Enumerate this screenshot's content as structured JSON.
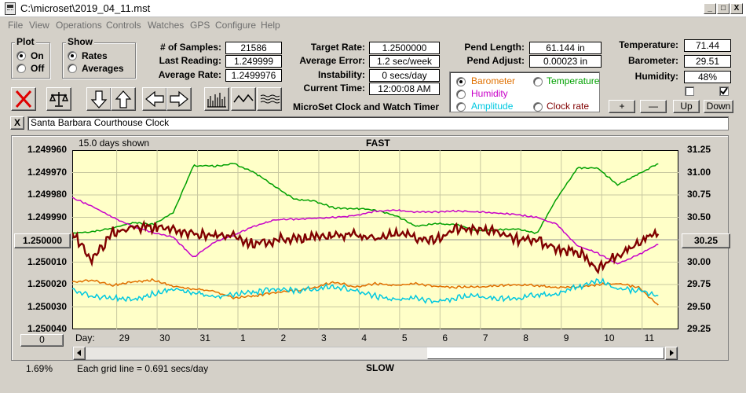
{
  "window": {
    "title": "C:\\microset\\2019_04_11.mst",
    "controls": [
      "_",
      "□",
      "X"
    ]
  },
  "menu": [
    "File",
    "View",
    "Operations",
    "Controls",
    "Watches",
    "GPS",
    "Configure",
    "Help"
  ],
  "plot_group": {
    "title": "Plot",
    "options": [
      "On",
      "Off"
    ],
    "selected": "On"
  },
  "show_group": {
    "title": "Show",
    "options": [
      "Rates",
      "Averages"
    ],
    "selected": "Rates"
  },
  "stats": {
    "samples_label": "# of Samples:",
    "samples": "21586",
    "last_reading_label": "Last Reading:",
    "last_reading": "1.249999",
    "avg_rate_label": "Average Rate:",
    "avg_rate": "1.2499976",
    "target_rate_label": "Target Rate:",
    "target_rate": "1.2500000",
    "avg_error_label": "Average Error:",
    "avg_error": "1.2 sec/week",
    "instability_label": "Instability:",
    "instability": "0 secs/day",
    "current_time_label": "Current Time:",
    "current_time": "12:00:08 AM",
    "pend_length_label": "Pend Length:",
    "pend_length": "61.144 in",
    "pend_adjust_label": "Pend Adjust:",
    "pend_adjust": "0.00023 in",
    "temperature_label": "Temperature:",
    "temperature": "71.44",
    "barometer_label": "Barometer:",
    "barometer": "29.51",
    "humidity_label": "Humidity:",
    "humidity": "48%"
  },
  "app_heading": "MicroSet Clock and Watch Timer",
  "series_selector": {
    "options": [
      {
        "label": "Barometer",
        "color": "#e07000",
        "selected": true
      },
      {
        "label": "Temperature",
        "color": "#00a000",
        "selected": false
      },
      {
        "label": "Humidity",
        "color": "#c800c8",
        "selected": false
      },
      {
        "label": "Amplitude",
        "color": "#00c8e0",
        "selected": false
      },
      {
        "label": "Clock rate",
        "color": "#800000",
        "selected": false
      }
    ]
  },
  "small_buttons": {
    "plus": "+",
    "minus": "—",
    "up": "Up",
    "down": "Down"
  },
  "checkboxes": [
    {
      "checked": false
    },
    {
      "checked": true
    }
  ],
  "clock_name": {
    "close": "X",
    "value": "Santa Barbara Courthouse Clock"
  },
  "toolbar_icons": [
    "cancel-icon",
    "scale-icon",
    "arrow-down-icon",
    "arrow-up-icon",
    "arrow-left-icon",
    "arrow-right-icon",
    "histogram-icon",
    "wave-icon",
    "squiggle-icon"
  ],
  "chart": {
    "days_shown": "15.0 days shown",
    "fast_label": "FAST",
    "slow_label": "SLOW",
    "grid_note": "Each grid line = 0.691 secs/day",
    "percent": "1.69%",
    "day_label": "Day:",
    "left_button": "1.250000",
    "right_button": "30.25",
    "zero_button": "0",
    "plot_bg": "#ffffc8",
    "left_ticks": [
      "1.249960",
      "1.249970",
      "1.249980",
      "1.249990",
      "1.250000",
      "1.250010",
      "1.250020",
      "1.250030",
      "1.250040"
    ],
    "right_ticks": [
      "31.25",
      "31.00",
      "30.75",
      "30.50",
      "30.25",
      "30.00",
      "29.75",
      "29.50",
      "29.25"
    ],
    "x_ticks": [
      "29",
      "30",
      "31",
      "1",
      "2",
      "3",
      "4",
      "5",
      "6",
      "7",
      "8",
      "9",
      "10",
      "11"
    ]
  },
  "chart_data": {
    "type": "line",
    "x_unit": "day index (0 = start of 15.0-day window)",
    "xlim": [
      0,
      15
    ],
    "ylim_left": [
      1.24996,
      1.25004
    ],
    "ylim_right": [
      29.25,
      31.25
    ],
    "series": [
      {
        "name": "Clock rate",
        "axis": "left",
        "color": "#800000",
        "x": [
          0,
          0.5,
          1,
          1.5,
          2,
          2.5,
          3,
          3.5,
          4,
          4.5,
          5,
          5.5,
          6,
          6.5,
          7,
          7.5,
          8,
          8.5,
          9,
          9.5,
          10,
          10.5,
          11,
          11.5,
          12,
          12.5,
          13,
          13.5,
          14,
          14.5
        ],
        "values": [
          1.249997,
          1.250009,
          1.249997,
          1.249995,
          1.249994,
          1.249996,
          1.249997,
          1.249998,
          1.249999,
          1.250002,
          1.25,
          1.249999,
          1.249999,
          1.249998,
          1.249998,
          1.25,
          1.249997,
          1.249999,
          1.25,
          1.249995,
          1.249995,
          1.249996,
          1.25,
          1.25,
          1.250004,
          1.250005,
          1.250013,
          1.250007,
          1.250002,
          1.249996
        ]
      },
      {
        "name": "Temperature",
        "axis": "right",
        "color": "#00a000",
        "x": [
          0,
          0.5,
          1,
          1.5,
          2,
          2.5,
          3,
          3.5,
          4,
          4.5,
          5,
          5.5,
          6,
          6.5,
          7,
          7.5,
          8,
          8.5,
          9,
          9.5,
          10,
          10.5,
          11,
          11.5,
          12,
          12.5,
          13,
          13.5,
          14,
          14.5
        ],
        "values": [
          30.32,
          30.34,
          30.38,
          30.44,
          30.42,
          30.55,
          31.08,
          31.07,
          31.1,
          31.0,
          30.85,
          30.7,
          30.68,
          30.6,
          30.6,
          30.58,
          30.52,
          30.4,
          30.43,
          30.42,
          30.35,
          30.36,
          30.37,
          30.32,
          30.72,
          31.05,
          31.05,
          30.86,
          30.98,
          31.1
        ]
      },
      {
        "name": "Humidity",
        "axis": "right",
        "color": "#c800c8",
        "x": [
          0,
          0.5,
          1,
          1.5,
          2,
          2.5,
          3,
          3.5,
          4,
          4.5,
          5,
          5.5,
          6,
          6.5,
          7,
          7.5,
          8,
          8.5,
          9,
          9.5,
          10,
          10.5,
          11,
          11.5,
          12,
          12.5,
          13,
          13.5,
          14,
          14.5
        ],
        "values": [
          30.72,
          30.62,
          30.5,
          30.4,
          30.33,
          30.28,
          30.05,
          30.22,
          30.3,
          30.4,
          30.47,
          30.48,
          30.49,
          30.5,
          30.52,
          30.57,
          30.58,
          30.56,
          30.56,
          30.57,
          30.56,
          30.55,
          30.53,
          30.5,
          30.42,
          30.18,
          30.1,
          29.98,
          30.08,
          30.2
        ]
      },
      {
        "name": "Barometer",
        "axis": "right",
        "color": "#e07000",
        "x": [
          0,
          0.5,
          1,
          1.5,
          2,
          2.5,
          3,
          3.5,
          4,
          4.5,
          5,
          5.5,
          6,
          6.5,
          7,
          7.5,
          8,
          8.5,
          9,
          9.5,
          10,
          10.5,
          11,
          11.5,
          12,
          12.5,
          13,
          13.5,
          14,
          14.5
        ],
        "values": [
          29.78,
          29.8,
          29.74,
          29.78,
          29.8,
          29.73,
          29.7,
          29.68,
          29.6,
          29.62,
          29.66,
          29.68,
          29.72,
          29.78,
          29.72,
          29.76,
          29.74,
          29.76,
          29.73,
          29.72,
          29.72,
          29.74,
          29.75,
          29.74,
          29.72,
          29.72,
          29.75,
          29.76,
          29.72,
          29.52
        ]
      },
      {
        "name": "Amplitude",
        "axis": "right",
        "color": "#00c8e0",
        "x": [
          0,
          0.5,
          1,
          1.5,
          2,
          2.5,
          3,
          3.5,
          4,
          4.5,
          5,
          5.5,
          6,
          6.5,
          7,
          7.5,
          8,
          8.5,
          9,
          9.5,
          10,
          10.5,
          11,
          11.5,
          12,
          12.5,
          13,
          13.5,
          14,
          14.5
        ],
        "values": [
          29.7,
          29.62,
          29.6,
          29.58,
          29.64,
          29.7,
          29.66,
          29.62,
          29.64,
          29.66,
          29.7,
          29.68,
          29.7,
          29.73,
          29.68,
          29.62,
          29.58,
          29.6,
          29.56,
          29.6,
          29.62,
          29.6,
          29.6,
          29.64,
          29.65,
          29.72,
          29.8,
          29.7,
          29.68,
          29.62
        ]
      }
    ]
  }
}
